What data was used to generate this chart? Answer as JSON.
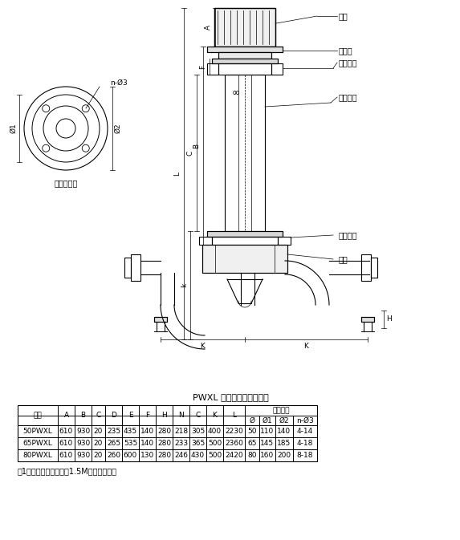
{
  "title": "PWXL 型排污泵外形尺寸表",
  "table_headers": [
    "型号",
    "A",
    "B",
    "C",
    "D",
    "E",
    "F",
    "H",
    "N",
    "C",
    "K",
    "L",
    "出口法兰"
  ],
  "sub_headers": [
    "Ø",
    "Ø1",
    "Ø2",
    "n-Ø3"
  ],
  "rows": [
    [
      "50PWXL",
      "610",
      "930",
      "20",
      "235",
      "435",
      "140",
      "280",
      "218",
      "305",
      "400",
      "2230",
      "50",
      "110",
      "140",
      "4-14"
    ],
    [
      "65PWXL",
      "610",
      "930",
      "20",
      "265",
      "535",
      "140",
      "280",
      "233",
      "365",
      "500",
      "2360",
      "65",
      "145",
      "185",
      "4-18"
    ],
    [
      "80PWXL",
      "610",
      "930",
      "20",
      "260",
      "600",
      "130",
      "280",
      "246",
      "430",
      "500",
      "2420",
      "80",
      "160",
      "200",
      "8-18"
    ]
  ],
  "note": "注1、该表是淨没水深为1.5M的外形尺寸。",
  "labels_right": [
    "电机",
    "电机座",
    "上轴承座",
    "筒形支架",
    "下轴承座",
    "泵体"
  ],
  "label_left": "泵出口法兰",
  "bg_color": "#ffffff",
  "line_color": "#000000"
}
